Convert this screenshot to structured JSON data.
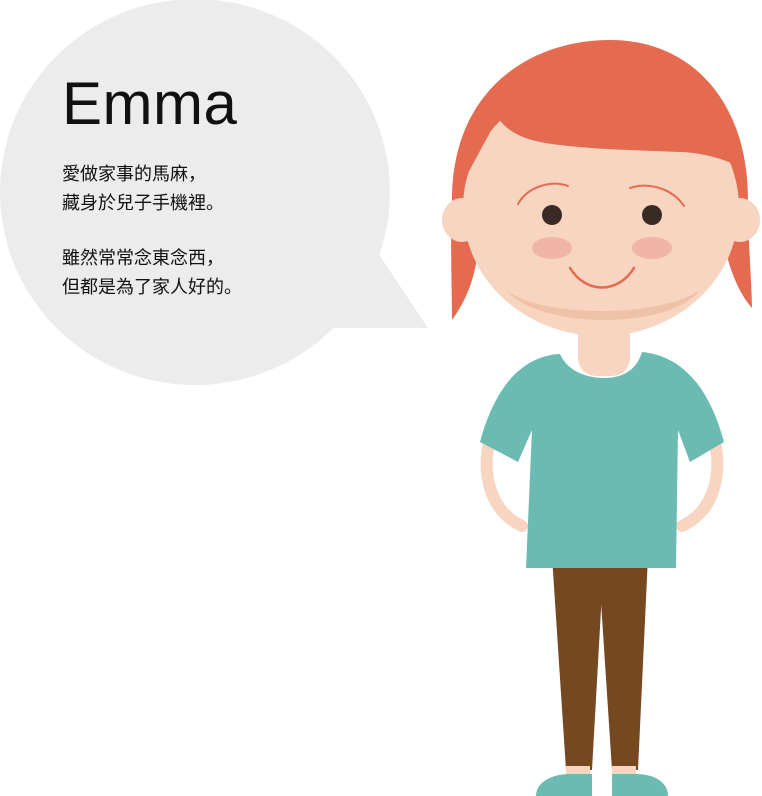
{
  "character": {
    "name": "Emma",
    "description": [
      [
        "愛做家事的馬麻，",
        "藏身於兒子手機裡。"
      ],
      [
        "雖然常常念東念西，",
        "但都是為了家人好的。"
      ]
    ]
  },
  "colors": {
    "bubble": "#ececec",
    "hair": "#e46b50",
    "skin": "#f8d5c0",
    "neck_shadow": "#efc1a7",
    "cheek": "#f1b5a8",
    "eye": "#3a2a26",
    "brow": "#e46b50",
    "mouth": "#e46b50",
    "shirt": "#6bbbb2",
    "pants": "#764820",
    "shoe": "#6bbbb2"
  }
}
